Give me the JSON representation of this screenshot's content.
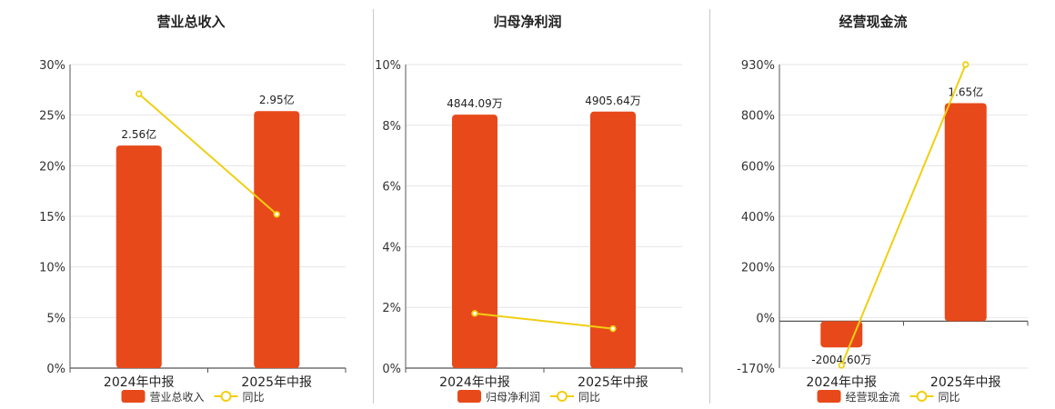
{
  "colors": {
    "bar": "#e8491a",
    "line": "#f0cf12",
    "grid": "#e6e6e6",
    "axis": "#555555"
  },
  "legend_line_label": "同比",
  "chart_data": [
    {
      "type": "bar",
      "title": "营业总收入",
      "categories": [
        "2024年中报",
        "2025年中报"
      ],
      "series": [
        {
          "name": "营业总收入",
          "kind": "bar",
          "values": [
            22.0,
            25.4
          ],
          "labels": [
            "2.56亿",
            "2.95亿"
          ]
        },
        {
          "name": "同比",
          "kind": "line",
          "values": [
            27.1,
            15.2
          ]
        }
      ],
      "y_ticks": [
        "30%",
        "25%",
        "20%",
        "15%",
        "10%",
        "5%",
        "0%"
      ],
      "ylim": [
        0,
        30
      ],
      "grid": true,
      "legend_position": "bottom"
    },
    {
      "type": "bar",
      "title": "归母净利润",
      "categories": [
        "2024年中报",
        "2025年中报"
      ],
      "series": [
        {
          "name": "归母净利润",
          "kind": "bar",
          "values": [
            8.35,
            8.45
          ],
          "labels": [
            "4844.09万",
            "4905.64万"
          ]
        },
        {
          "name": "同比",
          "kind": "line",
          "values": [
            1.8,
            1.3
          ]
        }
      ],
      "y_ticks": [
        "10%",
        "8%",
        "6%",
        "4%",
        "2%",
        "0%"
      ],
      "ylim": [
        0,
        10
      ],
      "grid": true,
      "legend_position": "bottom"
    },
    {
      "type": "bar",
      "title": "经营现金流",
      "categories": [
        "2024年中报",
        "2025年中报"
      ],
      "series": [
        {
          "name": "经营现金流",
          "kind": "bar",
          "values": [
            -95,
            790
          ],
          "labels": [
            "-2004.60万",
            "1.65亿"
          ]
        },
        {
          "name": "同比",
          "kind": "line",
          "values": [
            -160,
            930
          ]
        }
      ],
      "y_ticks": [
        "930%",
        "800%",
        "600%",
        "400%",
        "200%",
        "0%",
        "-170%"
      ],
      "ylim": [
        -170,
        930
      ],
      "grid": true,
      "legend_position": "bottom"
    }
  ]
}
